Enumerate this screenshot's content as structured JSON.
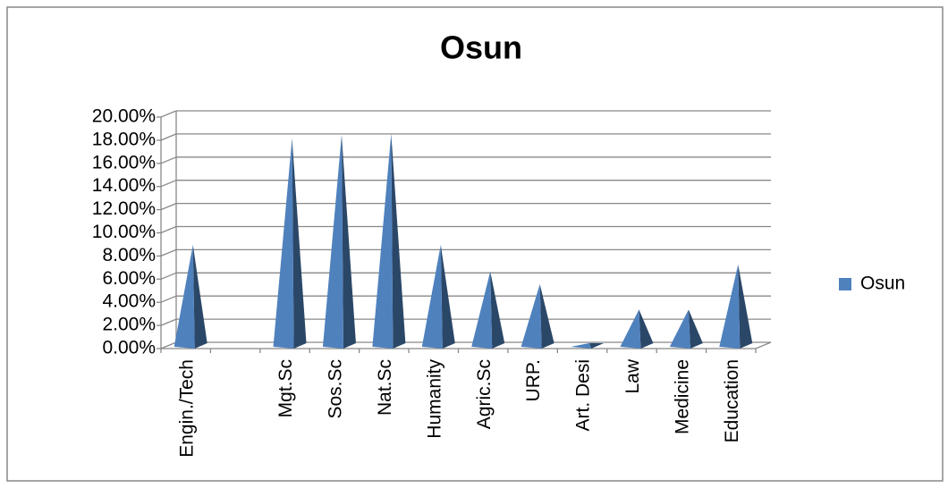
{
  "chart_data": {
    "type": "bar",
    "title": "Osun",
    "categories": [
      "Engin./Tech",
      null,
      "Mgt.Sc",
      "Sos.Sc",
      "Nat.Sc",
      "Humanity",
      "Agric.Sc",
      "URP.",
      "Art. Desi",
      "Law",
      "Medicine",
      "Education"
    ],
    "series": [
      {
        "name": "Osun",
        "color": "#4f81bd",
        "values": [
          8.7,
          null,
          17.9,
          18.2,
          18.3,
          8.7,
          6.4,
          5.3,
          0.2,
          3.1,
          3.1,
          7.0
        ]
      }
    ],
    "ylim": [
      0,
      20
    ],
    "yticks": [
      {
        "value": 0,
        "label": "0.00%"
      },
      {
        "value": 2,
        "label": "2.00%"
      },
      {
        "value": 4,
        "label": "4.00%"
      },
      {
        "value": 6,
        "label": "6.00%"
      },
      {
        "value": 8,
        "label": "8.00%"
      },
      {
        "value": 10,
        "label": "10.00%"
      },
      {
        "value": 12,
        "label": "12.00%"
      },
      {
        "value": 14,
        "label": "14.00%"
      },
      {
        "value": 16,
        "label": "16.00%"
      },
      {
        "value": 18,
        "label": "18.00%"
      },
      {
        "value": 20,
        "label": "20.00%"
      }
    ],
    "grid": true,
    "legend": "right"
  }
}
